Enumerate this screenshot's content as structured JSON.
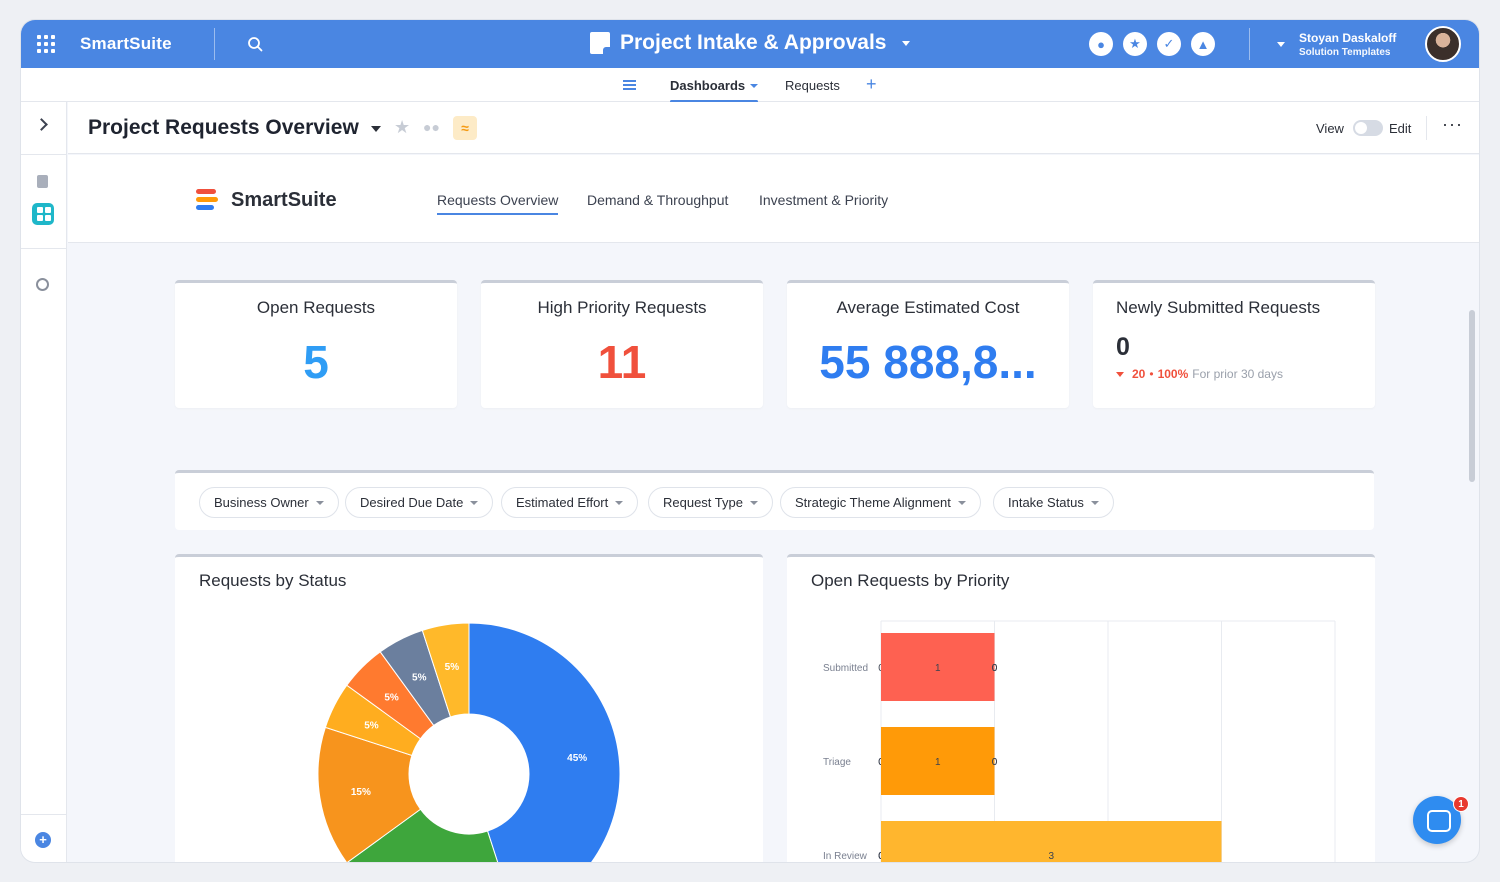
{
  "topbar": {
    "brand": "SmartSuite",
    "app_title": "Project Intake & Approvals",
    "user_name": "Stoyan Daskaloff",
    "user_sub": "Solution Templates",
    "icons": [
      "members-icon",
      "star-icon",
      "check-icon",
      "bell-icon"
    ]
  },
  "subnav": {
    "tabs": [
      {
        "label": "Dashboards"
      },
      {
        "label": "Requests"
      }
    ],
    "add_label": "+"
  },
  "header": {
    "title": "Project Requests Overview",
    "view_label": "View",
    "edit_label": "Edit",
    "more_label": "···"
  },
  "dashboard": {
    "brand": "SmartSuite",
    "tabs": [
      {
        "label": "Requests Overview"
      },
      {
        "label": "Demand & Throughput"
      },
      {
        "label": "Investment & Priority"
      }
    ]
  },
  "metrics": [
    {
      "title": "Open Requests",
      "value": "5",
      "color": "#2f9df5"
    },
    {
      "title": "High Priority Requests",
      "value": "11",
      "color": "#f0503c"
    },
    {
      "title": "Average Estimated Cost",
      "value": "55 888,8...",
      "color": "#2f7df0"
    }
  ],
  "newly_submitted": {
    "title": "Newly Submitted Requests",
    "value": "0",
    "delta_count": "20",
    "delta_sep": "•",
    "delta_pct": "100%",
    "delta_period": "For prior 30 days"
  },
  "filters": [
    "Business Owner",
    "Desired Due Date",
    "Estimated Effort",
    "Request Type",
    "Strategic Theme Alignment",
    "Intake Status"
  ],
  "charts": {
    "status_title": "Requests by Status",
    "priority_title": "Open Requests by Priority"
  },
  "chart_data": [
    {
      "type": "pie",
      "title": "Requests by Status",
      "slices": [
        {
          "label": "45%",
          "value": 45,
          "color": "#2f7df0"
        },
        {
          "label": "",
          "value": 20,
          "color": "#3ea63c"
        },
        {
          "label": "15%",
          "value": 15,
          "color": "#f7941d"
        },
        {
          "label": "5%",
          "value": 5,
          "color": "#ffad1f"
        },
        {
          "label": "5%",
          "value": 5,
          "color": "#ff7a2f"
        },
        {
          "label": "5%",
          "value": 5,
          "color": "#6b7f9e"
        },
        {
          "label": "5%",
          "value": 5,
          "color": "#ffb92a"
        }
      ]
    },
    {
      "type": "bar",
      "title": "Open Requests by Priority",
      "orientation": "horizontal",
      "stacked": true,
      "categories": [
        "Submitted",
        "Triage",
        "In Review"
      ],
      "series": [
        {
          "values": [
            0,
            0,
            0
          ]
        },
        {
          "values": [
            1,
            0,
            0
          ],
          "color": "#fe6151"
        },
        {
          "values": [
            0,
            1,
            0
          ],
          "color": "#ff9a08"
        },
        {
          "values": [
            0,
            0,
            3
          ],
          "color": "#ffb62e"
        },
        {
          "values": [
            0,
            0,
            null
          ]
        }
      ],
      "xlim": [
        0,
        4
      ],
      "grid": true
    }
  ],
  "chat": {
    "badge": "1"
  }
}
